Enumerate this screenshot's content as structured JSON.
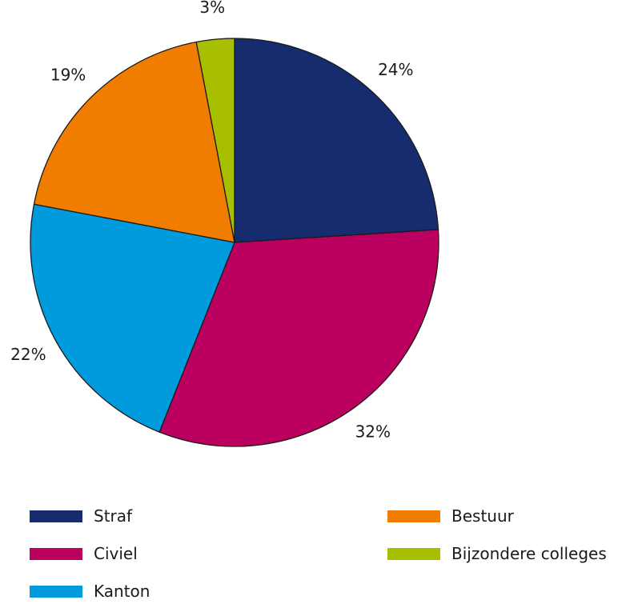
{
  "chart_data": {
    "type": "pie",
    "title": "",
    "slices": [
      {
        "label": "Straf",
        "value": 24,
        "display": "24%",
        "color": "#172c6e"
      },
      {
        "label": "Civiel",
        "value": 32,
        "display": "32%",
        "color": "#bb0060"
      },
      {
        "label": "Kanton",
        "value": 22,
        "display": "22%",
        "color": "#009bdc"
      },
      {
        "label": "Bestuur",
        "value": 19,
        "display": "19%",
        "color": "#f07d00"
      },
      {
        "label": "Bijzondere colleges",
        "value": 3,
        "display": "3%",
        "color": "#a8bf00"
      }
    ],
    "legend_placement": "bottom"
  }
}
